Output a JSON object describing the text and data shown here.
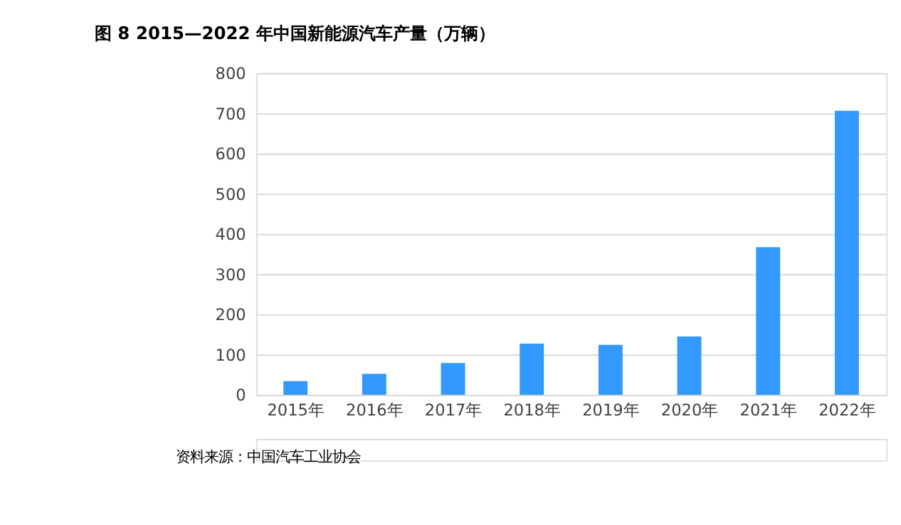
{
  "chart_data": {
    "type": "bar",
    "title": "图 8  2015—2022 年中国新能源汽车产量（万辆）",
    "categories": [
      "2015年",
      "2016年",
      "2017年",
      "2018年",
      "2019年",
      "2020年",
      "2021年",
      "2022年"
    ],
    "values": [
      34,
      52,
      79,
      127,
      124,
      145,
      367,
      706
    ],
    "color": "#3399ff",
    "ylim": [
      0,
      800
    ],
    "yticks": [
      0,
      100,
      200,
      300,
      400,
      500,
      600,
      700,
      800
    ],
    "grid": "y",
    "annotations": [
      "资料来源：中国汽车工业协会"
    ]
  }
}
